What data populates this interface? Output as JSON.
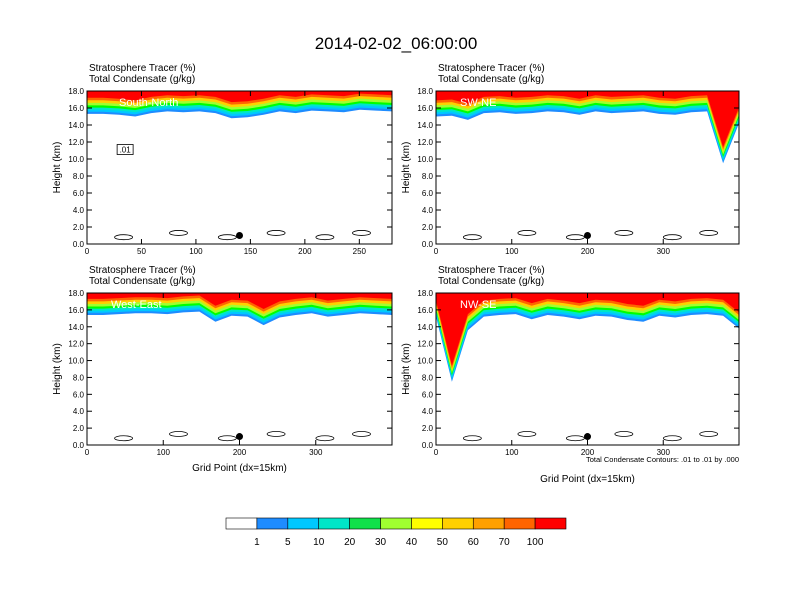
{
  "page_title": "2014-02-02_06:00:00",
  "colors": {
    "tracer_levels": [
      "#ffffff",
      "#1e8cff",
      "#00c8ff",
      "#00e6c8",
      "#10e04a",
      "#00ff00",
      "#a0ff30",
      "#ffff00",
      "#ffd000",
      "#ffa000",
      "#ff6400",
      "#ff0000"
    ],
    "contour": "#000000",
    "marker": "#000000"
  },
  "colorbar": {
    "labels": [
      "1",
      "5",
      "10",
      "20",
      "30",
      "40",
      "50",
      "60",
      "70",
      "100"
    ]
  },
  "footnote": "Total Condensate Contours: .01 to .01 by .000",
  "chart_data": [
    {
      "type": "heatmap",
      "panel_name": "South-North",
      "title": "Stratosphere Tracer   (%)",
      "subtitle": "Total Condensate   (g/kg)",
      "xlabel": "",
      "ylabel": "Height (km)",
      "xlim": [
        0,
        280
      ],
      "ylim": [
        0,
        18
      ],
      "xticks": [
        "0",
        "50",
        "100",
        "150",
        "200",
        "250"
      ],
      "yticks": [
        "0.0",
        "2.0",
        "4.0",
        "6.0",
        "8.0",
        "10.0",
        "12.0",
        "14.0",
        "16.0",
        "18.0"
      ],
      "tracer_base_km": [
        15.3,
        15.3,
        15.2,
        15.0,
        15.4,
        15.6,
        15.5,
        15.6,
        15.4,
        14.8,
        14.9,
        15.2,
        15.6,
        15.4,
        15.7,
        15.6,
        15.5,
        15.8,
        15.7,
        15.6
      ],
      "marker": {
        "x": 140,
        "y": 1.0
      },
      "contour_label": ".01"
    },
    {
      "type": "heatmap",
      "panel_name": "SW-NE",
      "title": "Stratosphere Tracer   (%)",
      "subtitle": "Total Condensate   (g/kg)",
      "xlabel": "",
      "ylabel": "Height (km)",
      "xlim": [
        0,
        400
      ],
      "ylim": [
        0,
        18
      ],
      "xticks": [
        "0",
        "100",
        "200",
        "300"
      ],
      "yticks": [
        "0.0",
        "2.0",
        "4.0",
        "6.0",
        "8.0",
        "10.0",
        "12.0",
        "14.0",
        "16.0",
        "18.0"
      ],
      "tracer_base_km": [
        15.0,
        15.1,
        14.6,
        15.4,
        15.5,
        15.3,
        15.4,
        15.6,
        15.5,
        15.2,
        15.6,
        15.4,
        15.5,
        15.6,
        15.3,
        15.2,
        15.5,
        15.6,
        9.5,
        14.2
      ],
      "marker": {
        "x": 200,
        "y": 1.0
      }
    },
    {
      "type": "heatmap",
      "panel_name": "West-East",
      "title": "Stratosphere Tracer   (%)",
      "subtitle": "Total Condensate   (g/kg)",
      "xlabel": "Grid Point (dx=15km)",
      "ylabel": "Height (km)",
      "xlim": [
        0,
        400
      ],
      "ylim": [
        0,
        18
      ],
      "xticks": [
        "0",
        "100",
        "200",
        "300"
      ],
      "yticks": [
        "0.0",
        "2.0",
        "4.0",
        "6.0",
        "8.0",
        "10.0",
        "12.0",
        "14.0",
        "16.0",
        "18.0"
      ],
      "tracer_base_km": [
        15.4,
        15.4,
        15.5,
        15.6,
        15.6,
        15.5,
        15.7,
        15.8,
        14.6,
        15.3,
        15.2,
        14.2,
        15.1,
        15.4,
        15.6,
        15.2,
        15.4,
        15.6,
        15.5,
        15.4
      ],
      "marker": {
        "x": 200,
        "y": 1.0
      }
    },
    {
      "type": "heatmap",
      "panel_name": "NW-SE",
      "title": "Stratosphere Tracer   (%)",
      "subtitle": "Total Condensate   (g/kg)",
      "xlabel": "Grid Point (dx=15km)",
      "ylabel": "Height (km)",
      "xlim": [
        0,
        400
      ],
      "ylim": [
        0,
        18
      ],
      "xticks": [
        "0",
        "100",
        "200",
        "300"
      ],
      "yticks": [
        "0.0",
        "2.0",
        "4.0",
        "6.0",
        "8.0",
        "10.0",
        "12.0",
        "14.0",
        "16.0",
        "18.0"
      ],
      "tracer_base_km": [
        15.2,
        7.5,
        13.6,
        15.2,
        15.4,
        15.5,
        14.9,
        15.4,
        15.2,
        14.9,
        15.3,
        15.2,
        14.8,
        14.6,
        15.3,
        15.1,
        15.4,
        15.5,
        15.3,
        13.8
      ],
      "marker": {
        "x": 200,
        "y": 1.0
      }
    }
  ]
}
